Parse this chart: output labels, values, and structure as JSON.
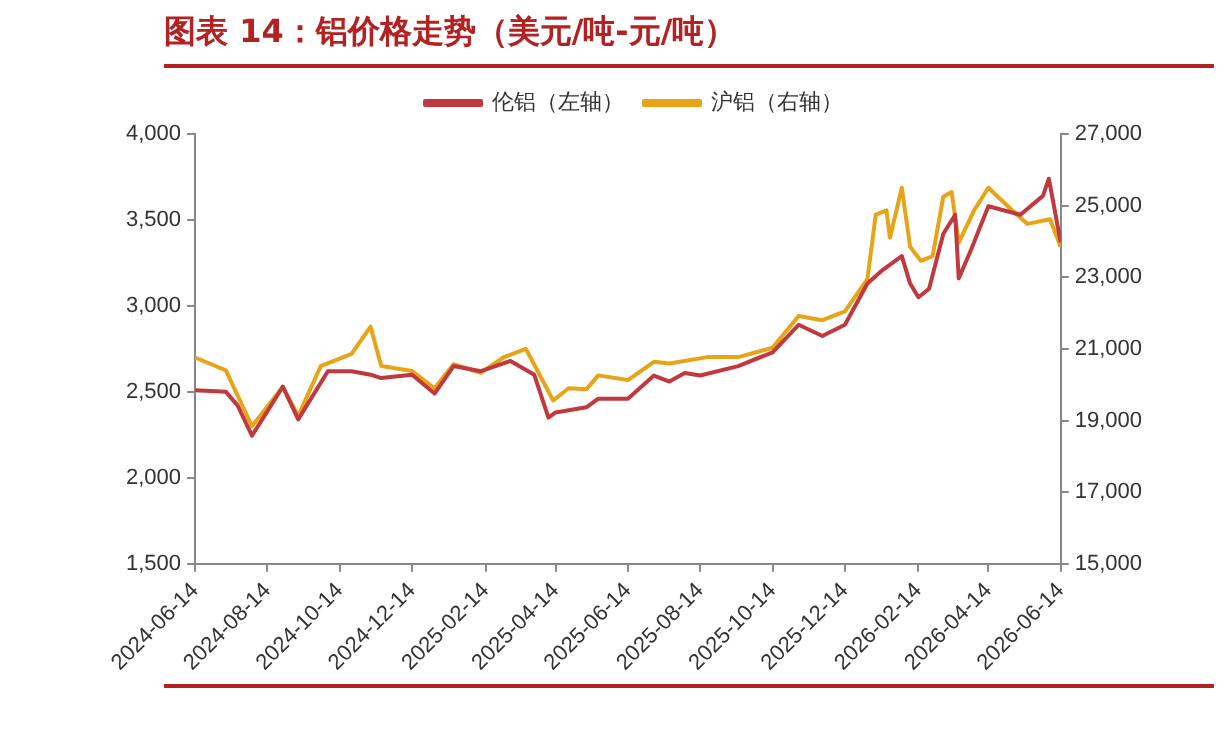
{
  "chart_data": {
    "type": "line",
    "title": "图表 14：铝价格走势（美元/吨-元/吨）",
    "series": [
      {
        "name": "伦铝（左轴）",
        "color": "#c0393f",
        "axis": "y",
        "x": [
          "2024-06-14",
          "2024-07-10",
          "2024-07-20",
          "2024-08-01",
          "2024-08-27",
          "2024-09-09",
          "2024-10-04",
          "2024-10-24",
          "2024-11-09",
          "2024-11-18",
          "2024-12-14",
          "2025-01-02",
          "2025-01-18",
          "2025-02-10",
          "2025-03-07",
          "2025-03-27",
          "2025-04-08",
          "2025-04-14",
          "2025-05-10",
          "2025-05-20",
          "2025-06-14",
          "2025-07-06",
          "2025-07-19",
          "2025-08-01",
          "2025-08-14",
          "2025-09-15",
          "2025-10-14",
          "2025-11-05",
          "2025-11-25",
          "2025-12-14",
          "2026-01-02",
          "2026-01-15",
          "2026-01-31",
          "2026-02-07",
          "2026-02-14",
          "2026-02-23",
          "2026-03-07",
          "2026-03-17",
          "2026-03-20",
          "2026-03-30",
          "2026-04-14",
          "2026-05-11",
          "2026-05-30",
          "2026-06-04",
          "2026-06-11",
          "2026-06-14"
        ],
        "values": [
          2510,
          2500,
          2420,
          2245,
          2530,
          2340,
          2620,
          2620,
          2600,
          2580,
          2600,
          2490,
          2650,
          2620,
          2680,
          2600,
          2350,
          2380,
          2410,
          2460,
          2460,
          2595,
          2560,
          2610,
          2595,
          2650,
          2730,
          2890,
          2825,
          2890,
          3130,
          3210,
          3290,
          3130,
          3050,
          3100,
          3420,
          3530,
          3160,
          3320,
          3580,
          3530,
          3640,
          3740,
          3480,
          3370
        ]
      },
      {
        "name": "沪铝（右轴）",
        "color": "#e8a317",
        "axis": "y2",
        "x": [
          "2024-06-14",
          "2024-07-10",
          "2024-08-01",
          "2024-08-27",
          "2024-09-09",
          "2024-09-28",
          "2024-10-24",
          "2024-11-09",
          "2024-11-18",
          "2024-12-14",
          "2025-01-02",
          "2025-01-18",
          "2025-02-10",
          "2025-03-01",
          "2025-03-20",
          "2025-04-12",
          "2025-04-25",
          "2025-05-10",
          "2025-05-20",
          "2025-06-14",
          "2025-07-06",
          "2025-07-19",
          "2025-08-20",
          "2025-09-15",
          "2025-10-14",
          "2025-11-05",
          "2025-11-25",
          "2025-12-14",
          "2026-01-02",
          "2026-01-09",
          "2026-01-18",
          "2026-01-21",
          "2026-01-31",
          "2026-02-07",
          "2026-02-16",
          "2026-02-26",
          "2026-03-07",
          "2026-03-14",
          "2026-03-20",
          "2026-04-02",
          "2026-04-14",
          "2026-05-04",
          "2026-05-17",
          "2026-06-05",
          "2026-06-14"
        ],
        "values": [
          20760,
          20400,
          18840,
          19940,
          19130,
          20520,
          20860,
          21620,
          20520,
          20380,
          19900,
          20570,
          20330,
          20760,
          21000,
          19560,
          19900,
          19870,
          20260,
          20130,
          20640,
          20590,
          20770,
          20770,
          21030,
          21920,
          21800,
          22050,
          22950,
          24740,
          24870,
          24100,
          25500,
          23850,
          23460,
          23590,
          25250,
          25380,
          23970,
          24870,
          25500,
          24870,
          24490,
          24620,
          23850
        ]
      }
    ],
    "xlim": [
      "2024-06-14",
      "2026-06-14"
    ],
    "xticks": [
      "2024-06-14",
      "2024-08-14",
      "2024-10-14",
      "2024-12-14",
      "2025-02-14",
      "2025-04-14",
      "2025-06-14",
      "2025-08-14",
      "2025-10-14",
      "2025-12-14",
      "2026-02-14",
      "2026-04-14",
      "2026-06-14"
    ],
    "ylim": [
      1500,
      4000
    ],
    "yticks": [
      {
        "value": 1500,
        "label": "1,500"
      },
      {
        "value": 2000,
        "label": "2,000"
      },
      {
        "value": 2500,
        "label": "2,500"
      },
      {
        "value": 3000,
        "label": "3,000"
      },
      {
        "value": 3500,
        "label": "3,500"
      },
      {
        "value": 4000,
        "label": "4,000"
      }
    ],
    "y2lim": [
      15000,
      27000
    ],
    "y2ticks": [
      {
        "value": 15000,
        "label": "15,000"
      },
      {
        "value": 17000,
        "label": "17,000"
      },
      {
        "value": 19000,
        "label": "19,000"
      },
      {
        "value": 21000,
        "label": "21,000"
      },
      {
        "value": 23000,
        "label": "23,000"
      },
      {
        "value": 25000,
        "label": "25,000"
      },
      {
        "value": 27000,
        "label": "27,000"
      }
    ],
    "grid": false,
    "legend": "top",
    "marker": "none",
    "line_style": "solid"
  }
}
